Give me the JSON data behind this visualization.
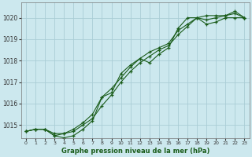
{
  "xlabel": "Graphe pression niveau de la mer (hPa)",
  "bg_color": "#cce8ee",
  "grid_color": "#aacdd6",
  "line_color": "#1a5c1a",
  "ylim": [
    1014.4,
    1020.7
  ],
  "xlim": [
    -0.5,
    23.5
  ],
  "yticks": [
    1015,
    1016,
    1017,
    1018,
    1019,
    1020
  ],
  "xticks": [
    0,
    1,
    2,
    3,
    4,
    5,
    6,
    7,
    8,
    9,
    10,
    11,
    12,
    13,
    14,
    15,
    16,
    17,
    18,
    19,
    20,
    21,
    22,
    23
  ],
  "series": [
    [
      1014.7,
      1014.8,
      1014.8,
      1014.6,
      1014.6,
      1014.7,
      1015.0,
      1015.3,
      1015.9,
      1016.4,
      1017.0,
      1017.5,
      1017.9,
      1018.2,
      1018.5,
      1018.7,
      1019.2,
      1019.6,
      1020.0,
      1020.1,
      1020.1,
      1020.1,
      1020.2,
      1020.0
    ],
    [
      1014.7,
      1014.8,
      1014.8,
      1014.5,
      1014.4,
      1014.5,
      1014.8,
      1015.2,
      1016.3,
      1016.5,
      1017.4,
      1017.8,
      1018.1,
      1017.9,
      1018.3,
      1018.6,
      1019.5,
      1020.0,
      1020.0,
      1019.7,
      1019.8,
      1020.0,
      1020.0,
      1020.0
    ],
    [
      1014.7,
      1014.8,
      1014.8,
      1014.5,
      1014.6,
      1014.8,
      1015.1,
      1015.5,
      1016.3,
      1016.7,
      1017.2,
      1017.7,
      1018.1,
      1018.4,
      1018.6,
      1018.8,
      1019.4,
      1019.7,
      1020.0,
      1019.9,
      1020.0,
      1020.1,
      1020.3,
      1020.0
    ]
  ]
}
